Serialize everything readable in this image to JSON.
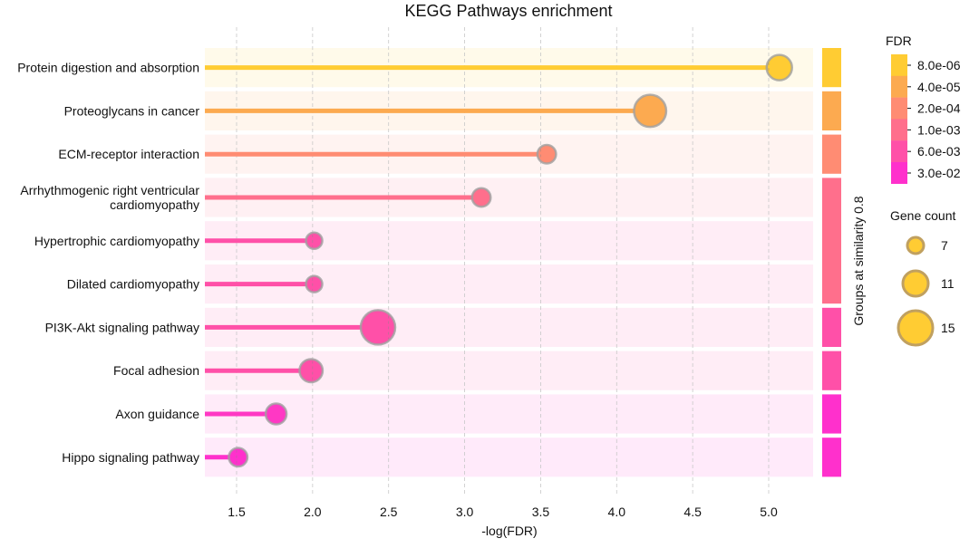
{
  "chart_data": {
    "type": "lollipop",
    "title": "KEGG Pathways enrichment",
    "xlabel": "-log(FDR)",
    "ylabel": "",
    "xlim": [
      1.28,
      5.35
    ],
    "xticks": [
      1.5,
      2.0,
      2.5,
      3.0,
      3.5,
      4.0,
      4.5,
      5.0
    ],
    "xtick_labels": [
      "1.5",
      "2.0",
      "2.5",
      "3.0",
      "3.5",
      "4.0",
      "4.5",
      "5.0"
    ],
    "grid": "vertical dashed",
    "categories": [
      "Protein digestion and absorption",
      "Proteoglycans in cancer",
      "ECM-receptor interaction",
      "Arrhythmogenic right ventricular cardiomyopathy",
      "Hypertrophic cardiomyopathy",
      "Dilated cardiomyopathy",
      "PI3K-Akt signaling pathway",
      "Focal adhesion",
      "Axon guidance",
      "Hippo signaling pathway"
    ],
    "category_lines": [
      [
        "Protein digestion and absorption"
      ],
      [
        "Proteoglycans in cancer"
      ],
      [
        "ECM-receptor interaction"
      ],
      [
        "Arrhythmogenic right ventricular",
        "cardiomyopathy"
      ],
      [
        "Hypertrophic cardiomyopathy"
      ],
      [
        "Dilated cardiomyopathy"
      ],
      [
        "PI3K-Akt signaling pathway"
      ],
      [
        "Focal adhesion"
      ],
      [
        "Axon guidance"
      ],
      [
        "Hippo signaling pathway"
      ]
    ],
    "values": [
      5.07,
      4.22,
      3.54,
      3.11,
      2.01,
      2.01,
      2.43,
      1.99,
      1.76,
      1.51
    ],
    "gene_counts": [
      11,
      14,
      8,
      8,
      7,
      7,
      15,
      10,
      9,
      8
    ],
    "colors": [
      "#FFCC33",
      "#FCAA50",
      "#FF8C73",
      "#FF6F8C",
      "#FF50A8",
      "#FF50A8",
      "#FF50A8",
      "#FF50A8",
      "#FF38C4",
      "#FF30CC"
    ],
    "group_label": "Groups at similarity 0.8",
    "groups": [
      {
        "rows": [
          0,
          0
        ],
        "color": "#FFCC33"
      },
      {
        "rows": [
          1,
          1
        ],
        "color": "#FCAA50"
      },
      {
        "rows": [
          2,
          2
        ],
        "color": "#FF8C73"
      },
      {
        "rows": [
          3,
          5
        ],
        "color": "#FF6F8C"
      },
      {
        "rows": [
          6,
          6
        ],
        "color": "#FF50A8"
      },
      {
        "rows": [
          7,
          7
        ],
        "color": "#FF50A8"
      },
      {
        "rows": [
          8,
          8
        ],
        "color": "#FF30CC"
      },
      {
        "rows": [
          9,
          9
        ],
        "color": "#FF30CC"
      }
    ],
    "fdr_legend": {
      "title": "FDR",
      "labels": [
        "8.0e-06",
        "4.0e-05",
        "2.0e-04",
        "1.0e-03",
        "6.0e-03",
        "3.0e-02"
      ],
      "colors": [
        "#FFCC33",
        "#FCAA50",
        "#FF8C73",
        "#FF6F8C",
        "#FF50A8",
        "#FF30CC"
      ]
    },
    "size_legend": {
      "title": "Gene count",
      "counts": [
        7,
        11,
        15
      ],
      "labels": [
        "7",
        "11",
        "15"
      ],
      "color": "#FFCC33"
    }
  }
}
